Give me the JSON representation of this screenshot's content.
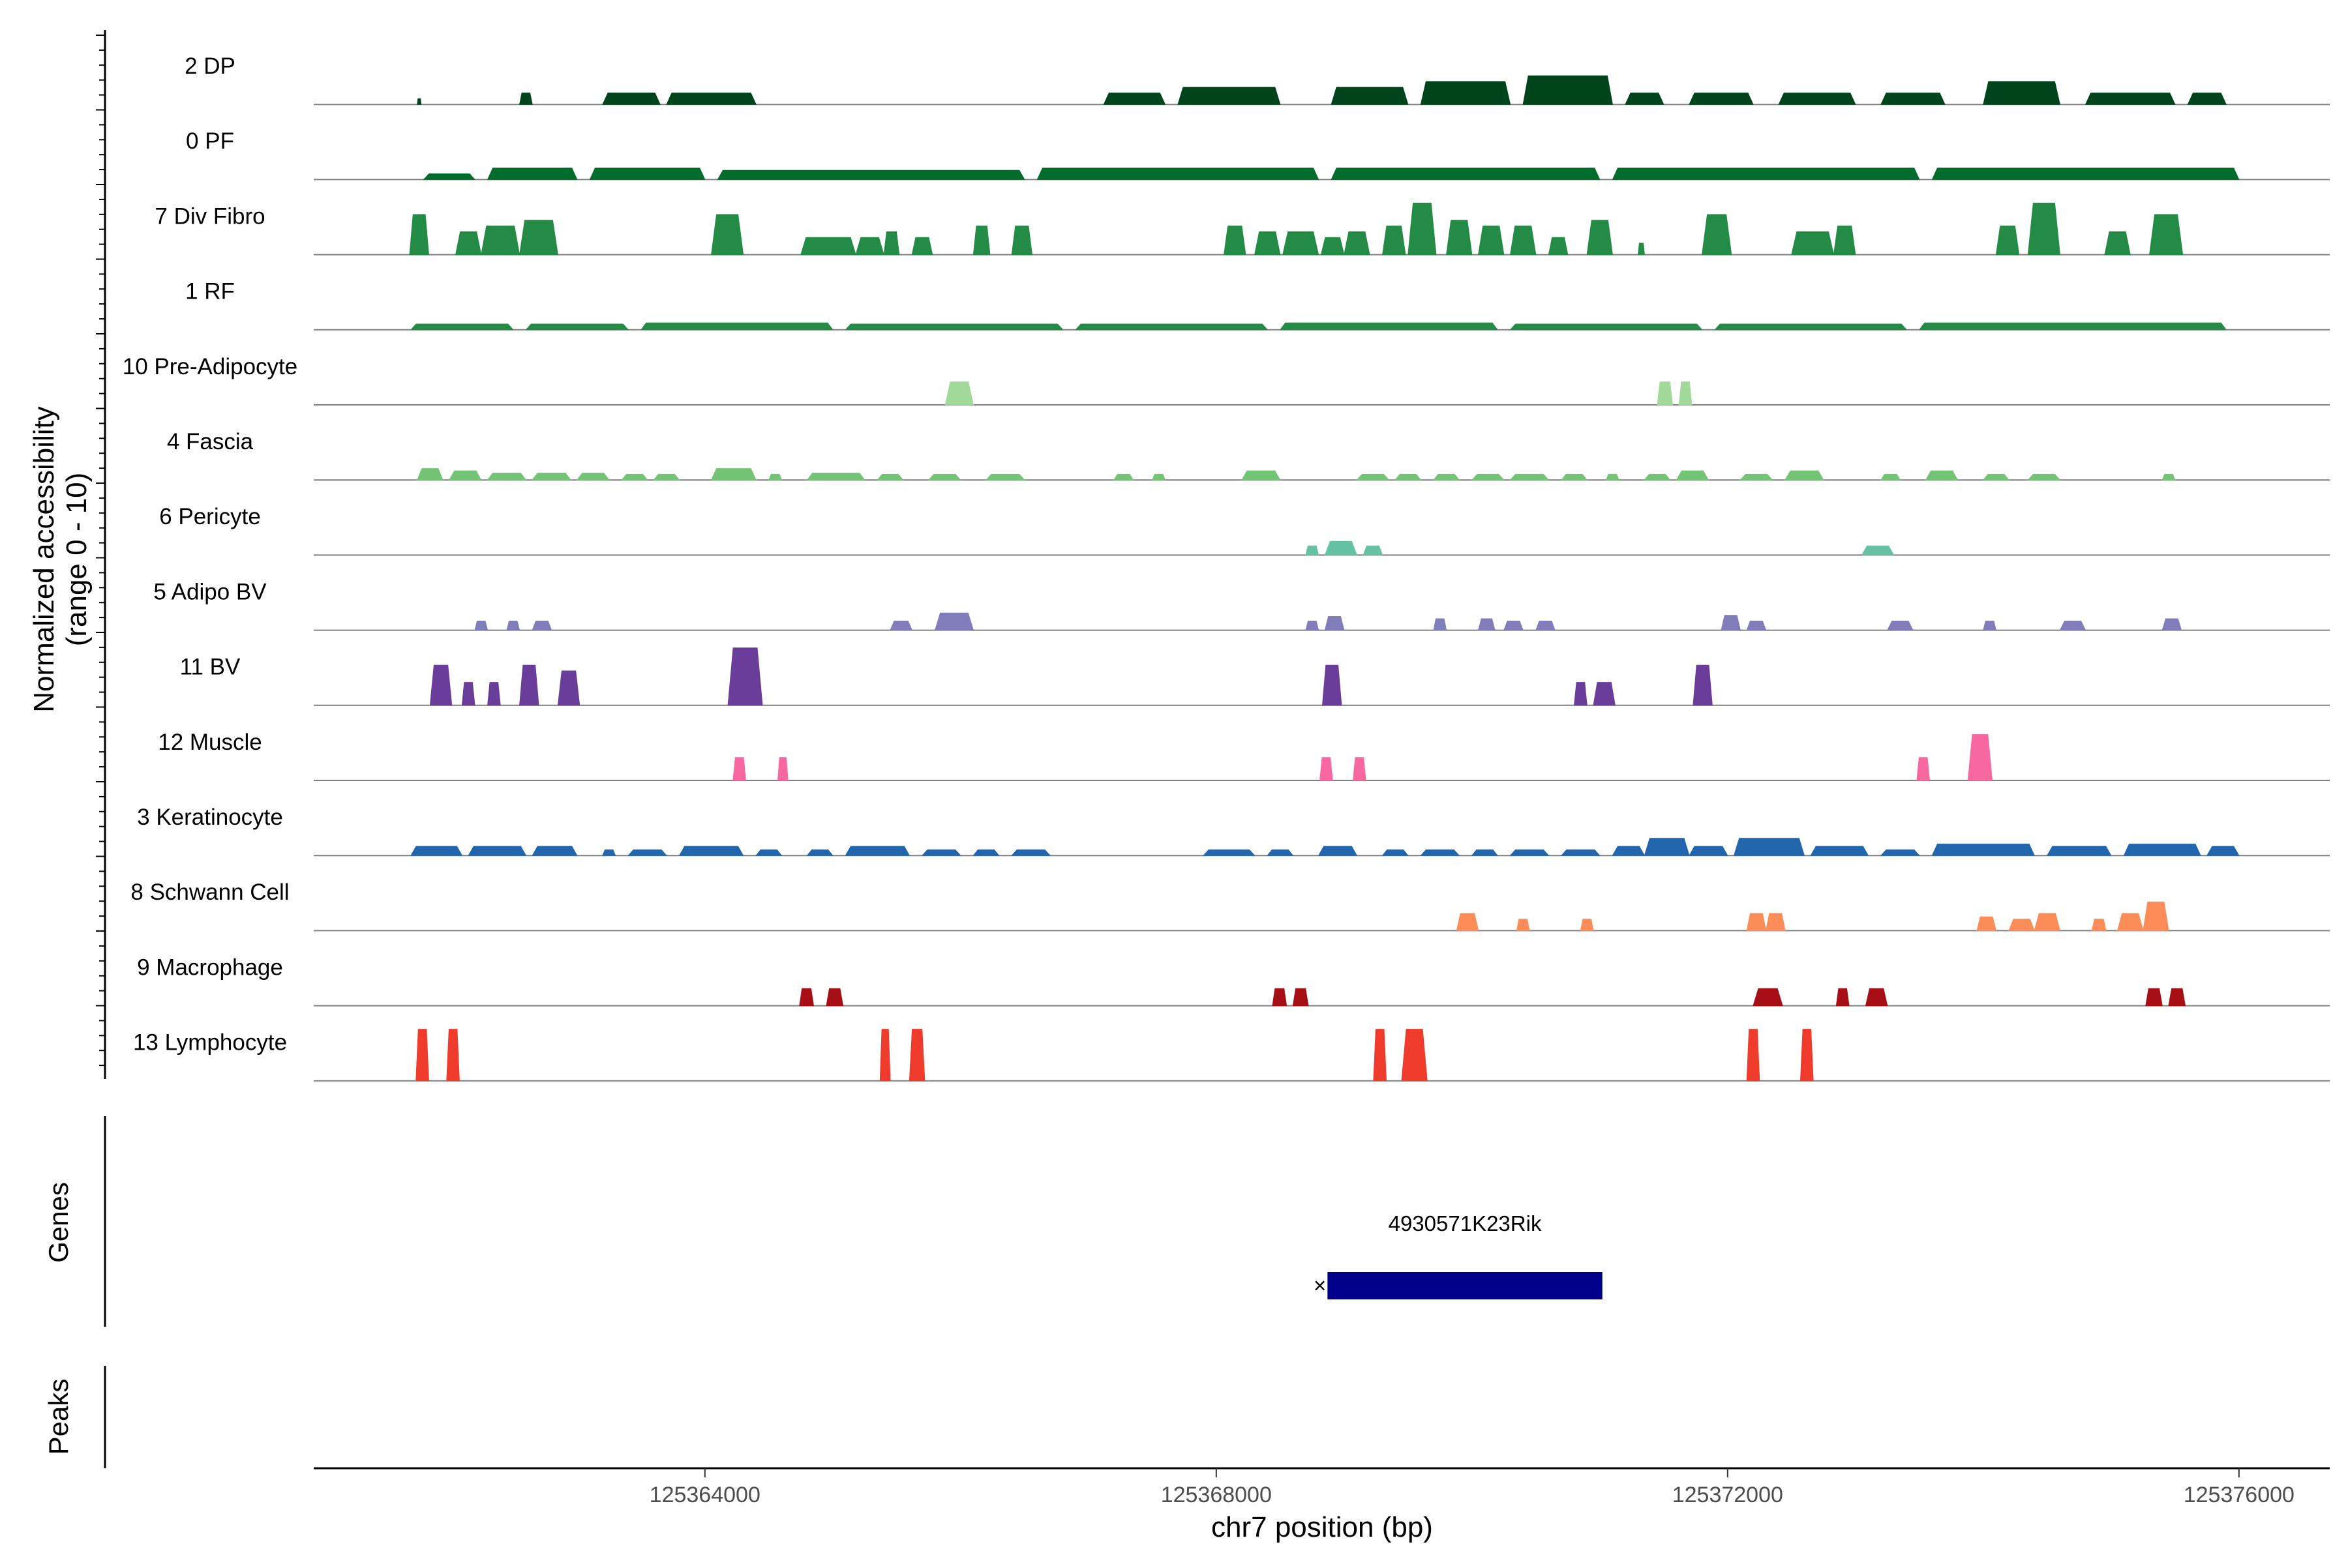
{
  "chart_data": {
    "type": "area",
    "title": "",
    "chromosome": "chr7",
    "xlabel": "chr7 position (bp)",
    "ylabel_lines": [
      "Normalized accessibility",
      "(range 0 - 10)"
    ],
    "ylim": [
      0,
      10
    ],
    "xlim": [
      125360940,
      125376710
    ],
    "x_ticks": [
      125364000,
      125368000,
      125372000,
      125376000
    ],
    "x_tick_labels": [
      "125364000",
      "125368000",
      "125372000",
      "125376000"
    ],
    "grid": false,
    "tracks": [
      {
        "name": "2 DP",
        "color": "#00441b",
        "peaks": [
          [
            125361750,
            125361780,
            0.5
          ],
          [
            125362550,
            125362650,
            1
          ],
          [
            125363200,
            125363650,
            1
          ],
          [
            125363700,
            125364400,
            1
          ],
          [
            125367120,
            125367600,
            1
          ],
          [
            125367700,
            125368500,
            1.5
          ],
          [
            125368900,
            125369500,
            1.5
          ],
          [
            125369600,
            125370300,
            2
          ],
          [
            125370400,
            125371100,
            2.5
          ],
          [
            125371200,
            125371500,
            1
          ],
          [
            125371700,
            125372200,
            1
          ],
          [
            125372400,
            125373000,
            1
          ],
          [
            125373200,
            125373700,
            1
          ],
          [
            125374000,
            125374600,
            2
          ],
          [
            125374800,
            125375500,
            1
          ],
          [
            125375600,
            125375900,
            1
          ]
        ]
      },
      {
        "name": "0 PF",
        "color": "#006d2c",
        "peaks": [
          [
            125361800,
            125362200,
            0.5
          ],
          [
            125362300,
            125363000,
            1
          ],
          [
            125363100,
            125364000,
            1
          ],
          [
            125364100,
            125366500,
            0.8
          ],
          [
            125366600,
            125368800,
            1
          ],
          [
            125368900,
            125371000,
            1
          ],
          [
            125371100,
            125373500,
            1
          ],
          [
            125373600,
            125376000,
            1
          ]
        ]
      },
      {
        "name": "7 Div Fibro",
        "color": "#238b45",
        "peaks": [
          [
            125361690,
            125361840,
            3.5
          ],
          [
            125362050,
            125362250,
            2
          ],
          [
            125362250,
            125362550,
            2.5
          ],
          [
            125362550,
            125362850,
            3
          ],
          [
            125364050,
            125364300,
            3.5
          ],
          [
            125364750,
            125365180,
            1.5
          ],
          [
            125365180,
            125365400,
            1.5
          ],
          [
            125365400,
            125365520,
            2
          ],
          [
            125365620,
            125365780,
            1.5
          ],
          [
            125366100,
            125366230,
            2.5
          ],
          [
            125366400,
            125366560,
            2.5
          ],
          [
            125368060,
            125368230,
            2.5
          ],
          [
            125368300,
            125368500,
            2
          ],
          [
            125368520,
            125368800,
            2
          ],
          [
            125368820,
            125369000,
            1.5
          ],
          [
            125369000,
            125369200,
            2
          ],
          [
            125369300,
            125369480,
            2.5
          ],
          [
            125369500,
            125369720,
            4.5
          ],
          [
            125369800,
            125370000,
            3
          ],
          [
            125370050,
            125370250,
            2.5
          ],
          [
            125370300,
            125370500,
            2.5
          ],
          [
            125370600,
            125370750,
            1.5
          ],
          [
            125370900,
            125371100,
            3
          ],
          [
            125371300,
            125371350,
            1
          ],
          [
            125371800,
            125372030,
            3.5
          ],
          [
            125372500,
            125372830,
            2
          ],
          [
            125372830,
            125373000,
            2.5
          ],
          [
            125374100,
            125374280,
            2.5
          ],
          [
            125374350,
            125374600,
            4.5
          ],
          [
            125374950,
            125375150,
            2
          ],
          [
            125375300,
            125375560,
            3.5
          ]
        ]
      },
      {
        "name": "1 RF",
        "color": "#238b45",
        "peaks": [
          [
            125361700,
            125362500,
            0.5
          ],
          [
            125362600,
            125363400,
            0.5
          ],
          [
            125363500,
            125365000,
            0.6
          ],
          [
            125365100,
            125366800,
            0.5
          ],
          [
            125366900,
            125368400,
            0.5
          ],
          [
            125368500,
            125370200,
            0.6
          ],
          [
            125370300,
            125371800,
            0.5
          ],
          [
            125371900,
            125373400,
            0.5
          ],
          [
            125373500,
            125375900,
            0.6
          ]
        ]
      },
      {
        "name": "10 Pre-Adipocyte",
        "color": "#a1d99b",
        "peaks": [
          [
            125365880,
            125366100,
            2
          ],
          [
            125371450,
            125371570,
            2
          ],
          [
            125371620,
            125371720,
            2
          ]
        ]
      },
      {
        "name": "4 Fascia",
        "color": "#74c476",
        "peaks": [
          [
            125361750,
            125361950,
            1
          ],
          [
            125362000,
            125362250,
            0.8
          ],
          [
            125362300,
            125362600,
            0.6
          ],
          [
            125362650,
            125362950,
            0.6
          ],
          [
            125363000,
            125363250,
            0.6
          ],
          [
            125363350,
            125363550,
            0.5
          ],
          [
            125363600,
            125363800,
            0.5
          ],
          [
            125364050,
            125364400,
            1
          ],
          [
            125364500,
            125364600,
            0.5
          ],
          [
            125364800,
            125365250,
            0.6
          ],
          [
            125365350,
            125365550,
            0.5
          ],
          [
            125365750,
            125366000,
            0.5
          ],
          [
            125366200,
            125366500,
            0.5
          ],
          [
            125367200,
            125367350,
            0.5
          ],
          [
            125367500,
            125367600,
            0.5
          ],
          [
            125368200,
            125368500,
            0.8
          ],
          [
            125369100,
            125369350,
            0.5
          ],
          [
            125369400,
            125369600,
            0.5
          ],
          [
            125369700,
            125369900,
            0.5
          ],
          [
            125370000,
            125370250,
            0.5
          ],
          [
            125370300,
            125370600,
            0.5
          ],
          [
            125370700,
            125370900,
            0.5
          ],
          [
            125371050,
            125371150,
            0.5
          ],
          [
            125371350,
            125371550,
            0.5
          ],
          [
            125371600,
            125371850,
            0.8
          ],
          [
            125372100,
            125372350,
            0.5
          ],
          [
            125372450,
            125372750,
            0.8
          ],
          [
            125373200,
            125373350,
            0.5
          ],
          [
            125373550,
            125373800,
            0.8
          ],
          [
            125374000,
            125374200,
            0.5
          ],
          [
            125374350,
            125374600,
            0.5
          ],
          [
            125375400,
            125375500,
            0.5
          ]
        ]
      },
      {
        "name": "6 Pericyte",
        "color": "#66c2a4",
        "peaks": [
          [
            125368700,
            125368800,
            0.8
          ],
          [
            125368850,
            125369100,
            1.2
          ],
          [
            125369150,
            125369300,
            0.8
          ],
          [
            125373050,
            125373300,
            0.8
          ]
        ]
      },
      {
        "name": "5 Adipo BV",
        "color": "#807dba",
        "peaks": [
          [
            125362200,
            125362300,
            0.8
          ],
          [
            125362450,
            125362550,
            0.8
          ],
          [
            125362650,
            125362800,
            0.8
          ],
          [
            125365450,
            125365620,
            0.8
          ],
          [
            125365800,
            125366100,
            1.5
          ],
          [
            125368700,
            125368800,
            0.8
          ],
          [
            125368850,
            125369000,
            1.2
          ],
          [
            125369700,
            125369800,
            1
          ],
          [
            125370050,
            125370180,
            1
          ],
          [
            125370250,
            125370400,
            0.8
          ],
          [
            125370500,
            125370650,
            0.8
          ],
          [
            125371950,
            125372100,
            1.3
          ],
          [
            125372150,
            125372300,
            0.8
          ],
          [
            125373250,
            125373450,
            0.8
          ],
          [
            125374000,
            125374100,
            0.8
          ],
          [
            125374600,
            125374800,
            0.8
          ],
          [
            125375400,
            125375550,
            1
          ]
        ]
      },
      {
        "name": "11 BV",
        "color": "#6a3d9a",
        "peaks": [
          [
            125361850,
            125362020,
            3.5
          ],
          [
            125362100,
            125362200,
            2
          ],
          [
            125362300,
            125362400,
            2
          ],
          [
            125362550,
            125362700,
            3.5
          ],
          [
            125362850,
            125363020,
            3
          ],
          [
            125364180,
            125364450,
            5
          ],
          [
            125368830,
            125368980,
            3.5
          ],
          [
            125370800,
            125370900,
            2
          ],
          [
            125370950,
            125371120,
            2
          ],
          [
            125371730,
            125371880,
            3.5
          ]
        ]
      },
      {
        "name": "12 Muscle",
        "color": "#f768a1",
        "peaks": [
          [
            125364220,
            125364320,
            2
          ],
          [
            125364570,
            125364650,
            2
          ],
          [
            125368810,
            125368910,
            2
          ],
          [
            125369070,
            125369170,
            2
          ],
          [
            125373480,
            125373580,
            2
          ],
          [
            125373880,
            125374070,
            4
          ]
        ]
      },
      {
        "name": "3 Keratinocyte",
        "color": "#2166ac",
        "peaks": [
          [
            125361700,
            125362100,
            0.8
          ],
          [
            125362150,
            125362600,
            0.8
          ],
          [
            125362650,
            125363000,
            0.8
          ],
          [
            125363200,
            125363300,
            0.5
          ],
          [
            125363400,
            125363700,
            0.5
          ],
          [
            125363800,
            125364300,
            0.8
          ],
          [
            125364400,
            125364600,
            0.5
          ],
          [
            125364800,
            125365000,
            0.5
          ],
          [
            125365100,
            125365600,
            0.8
          ],
          [
            125365700,
            125366000,
            0.5
          ],
          [
            125366100,
            125366300,
            0.5
          ],
          [
            125366400,
            125366700,
            0.5
          ],
          [
            125367900,
            125368300,
            0.5
          ],
          [
            125368400,
            125368600,
            0.5
          ],
          [
            125368800,
            125369100,
            0.8
          ],
          [
            125369300,
            125369500,
            0.5
          ],
          [
            125369600,
            125369900,
            0.5
          ],
          [
            125370000,
            125370200,
            0.5
          ],
          [
            125370300,
            125370600,
            0.5
          ],
          [
            125370700,
            125371000,
            0.5
          ],
          [
            125371100,
            125371350,
            0.8
          ],
          [
            125371350,
            125371700,
            1.5
          ],
          [
            125371700,
            125372000,
            0.8
          ],
          [
            125372050,
            125372600,
            1.5
          ],
          [
            125372650,
            125373100,
            0.8
          ],
          [
            125373200,
            125373500,
            0.5
          ],
          [
            125373600,
            125374400,
            1
          ],
          [
            125374500,
            125375000,
            0.8
          ],
          [
            125375100,
            125375700,
            1
          ],
          [
            125375750,
            125376000,
            0.8
          ]
        ]
      },
      {
        "name": "8 Schwann Cell",
        "color": "#fc8d59",
        "peaks": [
          [
            125369880,
            125370050,
            1.5
          ],
          [
            125370350,
            125370450,
            1
          ],
          [
            125370850,
            125370950,
            1
          ],
          [
            125372150,
            125372300,
            1.5
          ],
          [
            125372300,
            125372450,
            1.5
          ],
          [
            125373950,
            125374100,
            1.2
          ],
          [
            125374200,
            125374400,
            1
          ],
          [
            125374400,
            125374600,
            1.5
          ],
          [
            125374850,
            125374960,
            1
          ],
          [
            125375050,
            125375250,
            1.5
          ],
          [
            125375250,
            125375450,
            2.5
          ]
        ]
      },
      {
        "name": "9 Macrophage",
        "color": "#a50f15",
        "peaks": [
          [
            125364740,
            125364850,
            1.5
          ],
          [
            125364950,
            125365080,
            1.5
          ],
          [
            125368440,
            125368550,
            1.5
          ],
          [
            125368600,
            125368720,
            1.5
          ],
          [
            125372200,
            125372430,
            1.5
          ],
          [
            125372850,
            125372950,
            1.5
          ],
          [
            125373080,
            125373250,
            1.5
          ],
          [
            125375270,
            125375400,
            1.5
          ],
          [
            125375450,
            125375580,
            1.5
          ]
        ]
      },
      {
        "name": "13 Lymphocyte",
        "color": "#ef3b2c",
        "peaks": [
          [
            125361740,
            125361840,
            4.5
          ],
          [
            125361980,
            125362080,
            4.5
          ],
          [
            125365370,
            125365450,
            4.5
          ],
          [
            125365600,
            125365720,
            4.5
          ],
          [
            125369230,
            125369330,
            4.5
          ],
          [
            125369450,
            125369650,
            4.5
          ],
          [
            125372150,
            125372250,
            4.5
          ],
          [
            125372570,
            125372670,
            4.5
          ]
        ]
      }
    ],
    "genes": {
      "panel_label": "Genes",
      "items": [
        {
          "name": "4930571K23Rik",
          "start": 125368870,
          "end": 125371020,
          "color": "#00008b",
          "arrow": "×"
        }
      ]
    },
    "peaks_panel": {
      "panel_label": "Peaks",
      "items": []
    }
  }
}
